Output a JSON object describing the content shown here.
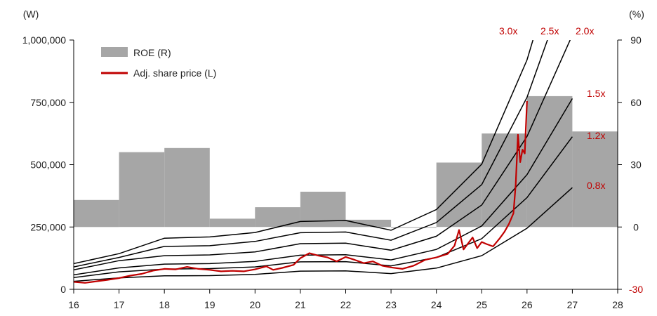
{
  "chart_data": {
    "type": "bar+line",
    "title": "",
    "left_axis": {
      "unit": "(W)",
      "ylim": [
        0,
        1000000
      ],
      "ticks": [
        0,
        250000,
        500000,
        750000,
        1000000
      ],
      "tick_labels": [
        "0",
        "250,000",
        "500,000",
        "750,000",
        "1,000,000"
      ]
    },
    "right_axis": {
      "unit": "(%)",
      "ylim": [
        -30,
        90
      ],
      "ticks": [
        -30,
        0,
        30,
        60,
        90
      ],
      "tick_labels": [
        "-30",
        "0",
        "30",
        "60",
        "90"
      ],
      "color_negative": "#c00000"
    },
    "x_axis": {
      "xlim": [
        16,
        28
      ],
      "ticks": [
        16,
        17,
        18,
        19,
        20,
        21,
        22,
        23,
        24,
        25,
        26,
        27,
        28
      ],
      "tick_labels": [
        "16",
        "17",
        "18",
        "19",
        "20",
        "21",
        "22",
        "23",
        "24",
        "25",
        "26",
        "27",
        "28"
      ]
    },
    "legend": {
      "position": "top-left",
      "items": [
        {
          "label": "ROE (R)",
          "kind": "bar",
          "color": "#a6a6a6"
        },
        {
          "label": "Adj. share price (L)",
          "kind": "line",
          "color": "#c00000"
        }
      ]
    },
    "roe_bars": [
      {
        "x0": 16,
        "x1": 17,
        "value": 13
      },
      {
        "x0": 17,
        "x1": 18,
        "value": 36
      },
      {
        "x0": 18,
        "x1": 19,
        "value": 38
      },
      {
        "x0": 19,
        "x1": 20,
        "value": 4
      },
      {
        "x0": 20,
        "x1": 21,
        "value": 9.5
      },
      {
        "x0": 21,
        "x1": 22,
        "value": 17
      },
      {
        "x0": 22,
        "x1": 23,
        "value": 3.5
      },
      {
        "x0": 23,
        "x1": 24,
        "value": 0
      },
      {
        "x0": 24,
        "x1": 25,
        "value": 31
      },
      {
        "x0": 25,
        "x1": 26,
        "value": 45
      },
      {
        "x0": 26,
        "x1": 27,
        "value": 63
      },
      {
        "x0": 27,
        "x1": 28,
        "value": 46
      }
    ],
    "pbr_bands": {
      "x": [
        16,
        17,
        18,
        19,
        20,
        21,
        22,
        23,
        24,
        25,
        26,
        27
      ],
      "series": [
        {
          "name": "0.8x",
          "values": [
            32000,
            46000,
            54000,
            55000,
            60000,
            73000,
            74000,
            63000,
            85000,
            135000,
            245000,
            408000
          ]
        },
        {
          "name": "1.2x",
          "values": [
            47000,
            70000,
            81000,
            83000,
            90000,
            110000,
            111000,
            94000,
            128000,
            203000,
            368000,
            612000
          ]
        },
        {
          "name": "1.5x",
          "values": [
            58000,
            86000,
            101000,
            103000,
            112000,
            137000,
            139000,
            118000,
            160000,
            254000,
            460000,
            765000
          ]
        },
        {
          "name": "2.0x",
          "values": [
            78000,
            115000,
            135000,
            138000,
            150000,
            183000,
            185000,
            157000,
            213000,
            338000,
            613000,
            1020000
          ]
        },
        {
          "name": "2.5x",
          "values": [
            90000,
            128000,
            172000,
            175000,
            192000,
            227000,
            230000,
            197000,
            268000,
            420000,
            770000,
            1280000
          ]
        },
        {
          "name": "3.0x",
          "values": [
            103000,
            143000,
            205000,
            210000,
            228000,
            272000,
            276000,
            237000,
            320000,
            502000,
            920000,
            1530000
          ]
        }
      ],
      "label_color": "#c00000"
    },
    "share_price": {
      "name": "Adj. share price (L)",
      "color": "#c00000",
      "points": [
        [
          16.0,
          30000
        ],
        [
          16.25,
          26000
        ],
        [
          16.5,
          32000
        ],
        [
          16.75,
          38000
        ],
        [
          17.0,
          45000
        ],
        [
          17.25,
          55000
        ],
        [
          17.5,
          62000
        ],
        [
          17.75,
          75000
        ],
        [
          18.0,
          82000
        ],
        [
          18.25,
          80000
        ],
        [
          18.5,
          90000
        ],
        [
          18.75,
          82000
        ],
        [
          19.0,
          78000
        ],
        [
          19.25,
          72000
        ],
        [
          19.5,
          74000
        ],
        [
          19.75,
          72000
        ],
        [
          20.0,
          80000
        ],
        [
          20.25,
          92000
        ],
        [
          20.4,
          78000
        ],
        [
          20.6,
          86000
        ],
        [
          20.85,
          98000
        ],
        [
          21.0,
          125000
        ],
        [
          21.2,
          145000
        ],
        [
          21.4,
          135000
        ],
        [
          21.6,
          128000
        ],
        [
          21.8,
          112000
        ],
        [
          22.0,
          130000
        ],
        [
          22.2,
          118000
        ],
        [
          22.4,
          105000
        ],
        [
          22.6,
          112000
        ],
        [
          22.8,
          95000
        ],
        [
          23.0,
          88000
        ],
        [
          23.25,
          82000
        ],
        [
          23.5,
          95000
        ],
        [
          23.75,
          118000
        ],
        [
          24.0,
          128000
        ],
        [
          24.25,
          142000
        ],
        [
          24.4,
          175000
        ],
        [
          24.5,
          238000
        ],
        [
          24.6,
          160000
        ],
        [
          24.8,
          208000
        ],
        [
          24.9,
          165000
        ],
        [
          25.0,
          190000
        ],
        [
          25.1,
          182000
        ],
        [
          25.25,
          172000
        ],
        [
          25.4,
          205000
        ],
        [
          25.5,
          230000
        ],
        [
          25.6,
          262000
        ],
        [
          25.7,
          305000
        ],
        [
          25.75,
          420000
        ],
        [
          25.8,
          620000
        ],
        [
          25.85,
          510000
        ],
        [
          25.9,
          560000
        ],
        [
          25.95,
          545000
        ],
        [
          26.0,
          755000
        ]
      ]
    }
  }
}
